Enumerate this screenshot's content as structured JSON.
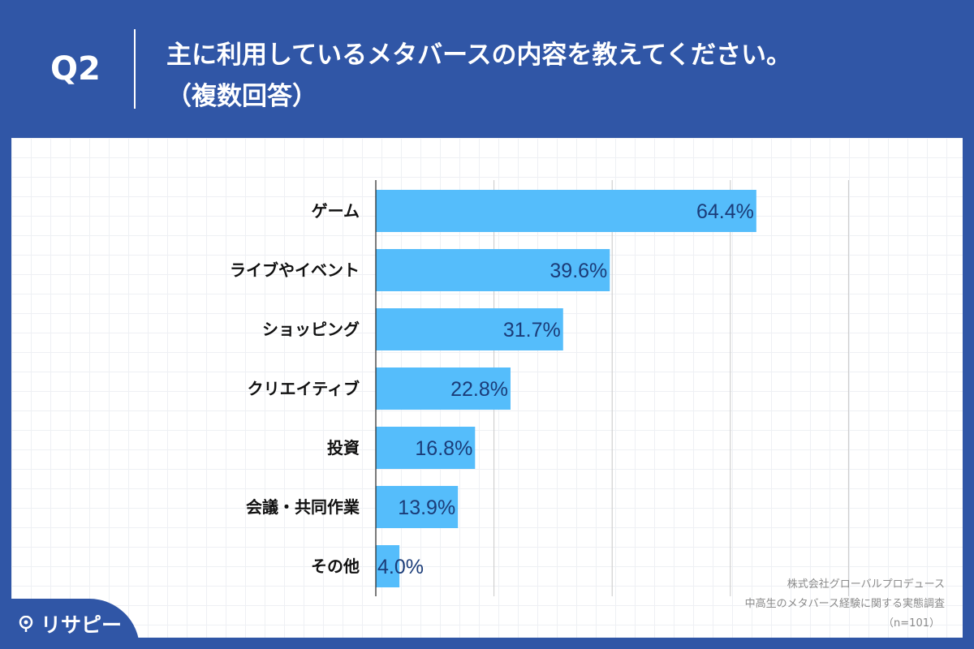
{
  "header": {
    "question_number": "Q2",
    "title_line1": "主に利用しているメタバースの内容を教えてください。",
    "title_line2": "（複数回答）"
  },
  "source": {
    "line1": "株式会社グローバルプロデュース",
    "line2": "中高生のメタバース経験に関する実態調査",
    "line3": "（n=101）"
  },
  "logo": {
    "text": "リサピー",
    "icon": "pin-icon"
  },
  "colors": {
    "header_bg": "#3056a6",
    "bar": "#55bdfb",
    "value_text": "#1b3c78",
    "panel_bg": "#ffffff"
  },
  "chart_data": {
    "type": "bar",
    "orientation": "horizontal",
    "categories": [
      "ゲーム",
      "ライブやイベント",
      "ショッピング",
      "クリエイティブ",
      "投資",
      "会議・共同作業",
      "その他"
    ],
    "values": [
      64.4,
      39.6,
      31.7,
      22.8,
      16.8,
      13.9,
      4.0
    ],
    "value_labels": [
      "64.4%",
      "39.6%",
      "31.7%",
      "22.8%",
      "16.8%",
      "13.9%",
      "4.0%"
    ],
    "xlim": [
      0,
      80
    ],
    "grid_step": 20,
    "grid": true
  }
}
